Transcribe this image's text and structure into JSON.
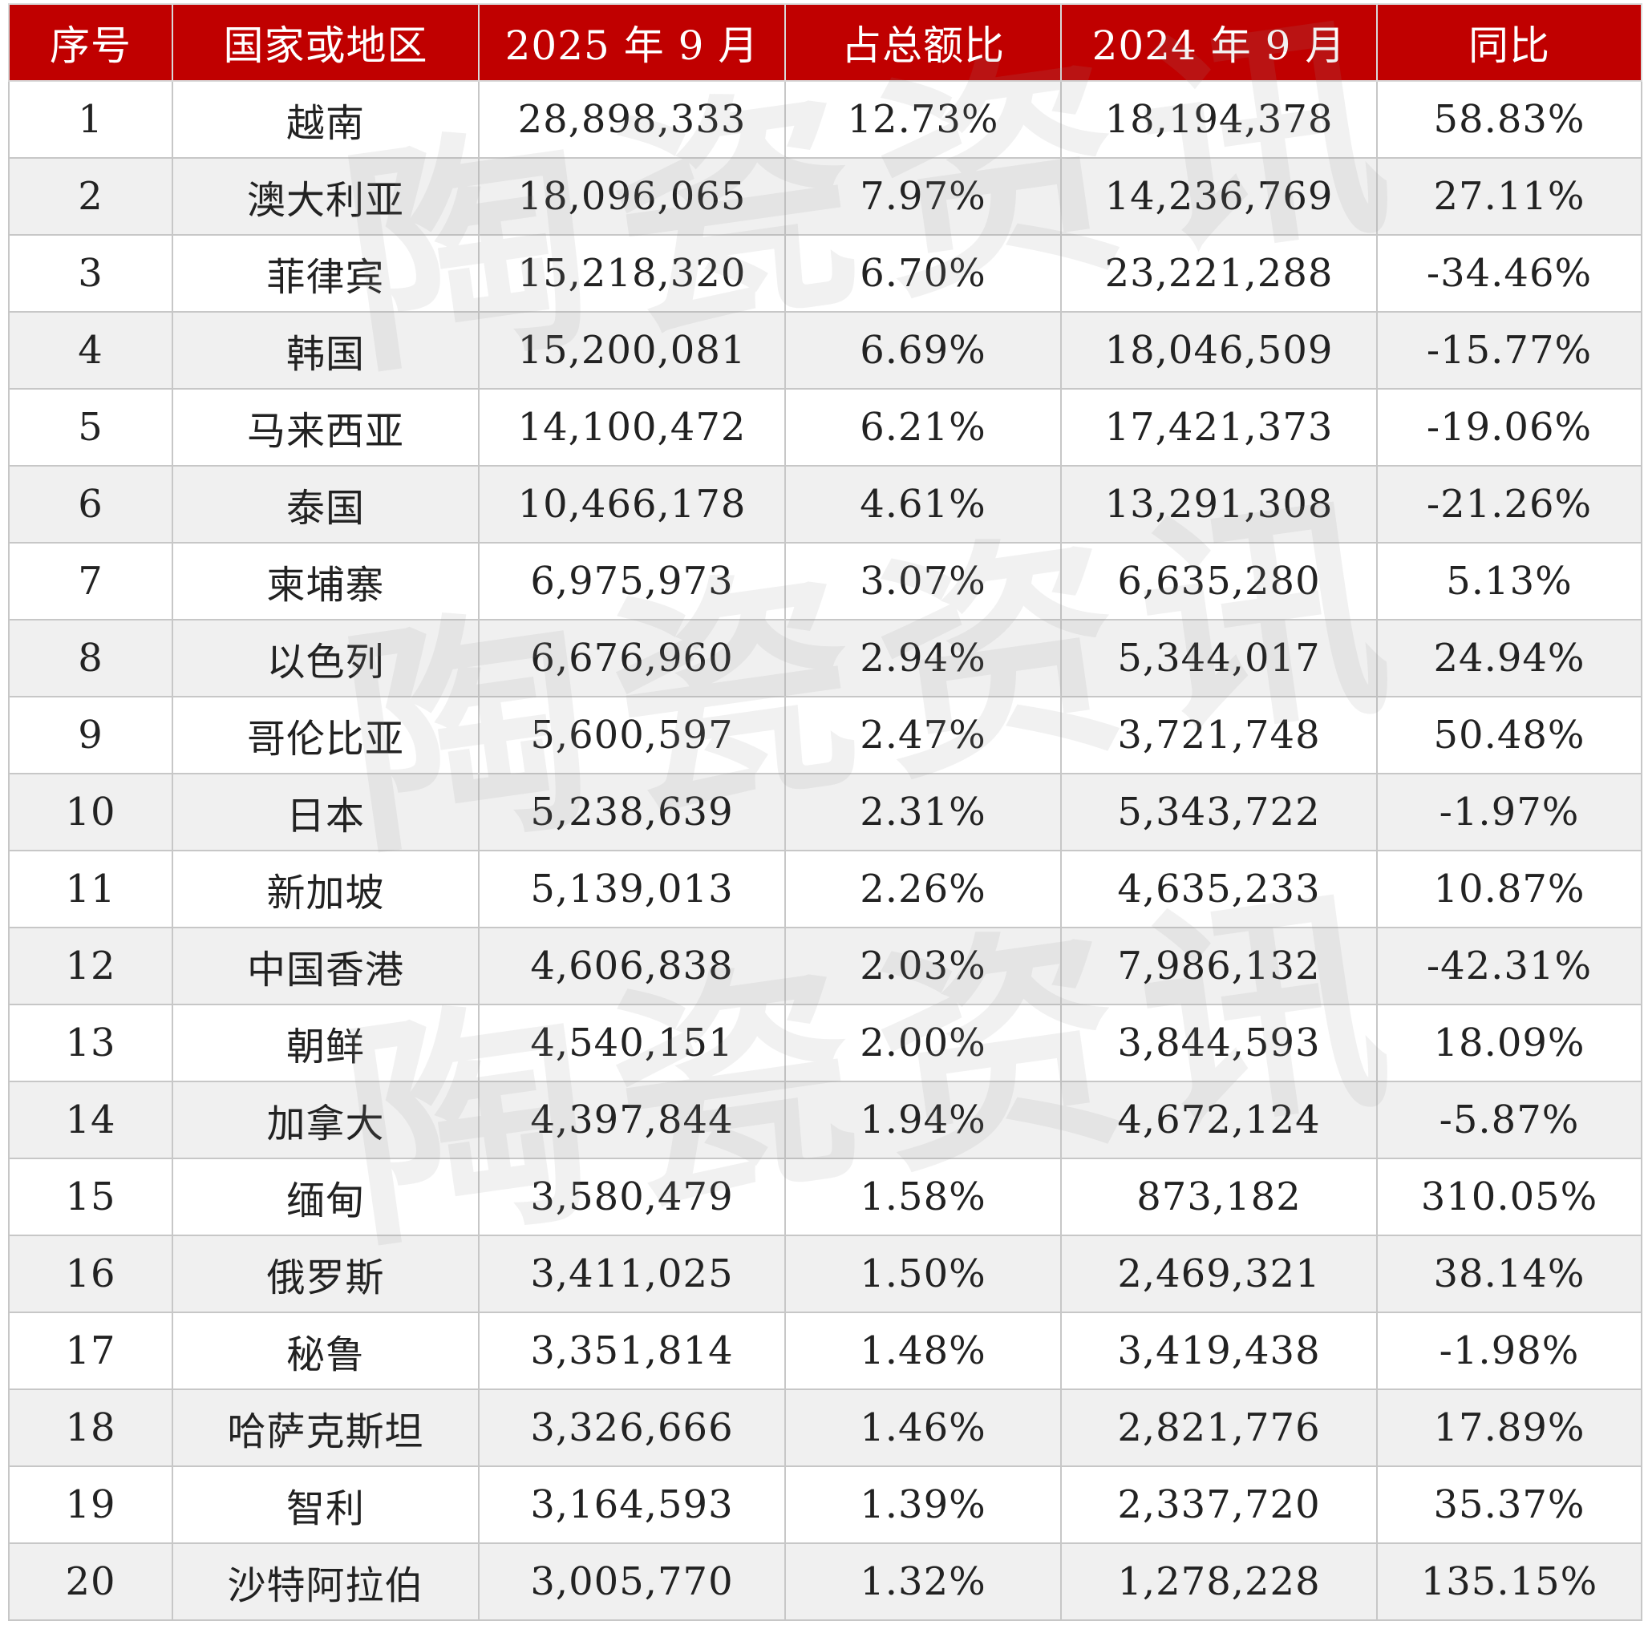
{
  "table": {
    "headers": [
      "序号",
      "国家或地区",
      "2025 年 9 月",
      "占总额比",
      "2024 年 9 月",
      "同比"
    ],
    "rows": [
      [
        "1",
        "越南",
        "28,898,333",
        "12.73%",
        "18,194,378",
        "58.83%"
      ],
      [
        "2",
        "澳大利亚",
        "18,096,065",
        "7.97%",
        "14,236,769",
        "27.11%"
      ],
      [
        "3",
        "菲律宾",
        "15,218,320",
        "6.70%",
        "23,221,288",
        "-34.46%"
      ],
      [
        "4",
        "韩国",
        "15,200,081",
        "6.69%",
        "18,046,509",
        "-15.77%"
      ],
      [
        "5",
        "马来西亚",
        "14,100,472",
        "6.21%",
        "17,421,373",
        "-19.06%"
      ],
      [
        "6",
        "泰国",
        "10,466,178",
        "4.61%",
        "13,291,308",
        "-21.26%"
      ],
      [
        "7",
        "柬埔寨",
        "6,975,973",
        "3.07%",
        "6,635,280",
        "5.13%"
      ],
      [
        "8",
        "以色列",
        "6,676,960",
        "2.94%",
        "5,344,017",
        "24.94%"
      ],
      [
        "9",
        "哥伦比亚",
        "5,600,597",
        "2.47%",
        "3,721,748",
        "50.48%"
      ],
      [
        "10",
        "日本",
        "5,238,639",
        "2.31%",
        "5,343,722",
        "-1.97%"
      ],
      [
        "11",
        "新加坡",
        "5,139,013",
        "2.26%",
        "4,635,233",
        "10.87%"
      ],
      [
        "12",
        "中国香港",
        "4,606,838",
        "2.03%",
        "7,986,132",
        "-42.31%"
      ],
      [
        "13",
        "朝鲜",
        "4,540,151",
        "2.00%",
        "3,844,593",
        "18.09%"
      ],
      [
        "14",
        "加拿大",
        "4,397,844",
        "1.94%",
        "4,672,124",
        "-5.87%"
      ],
      [
        "15",
        "缅甸",
        "3,580,479",
        "1.58%",
        "873,182",
        "310.05%"
      ],
      [
        "16",
        "俄罗斯",
        "3,411,025",
        "1.50%",
        "2,469,321",
        "38.14%"
      ],
      [
        "17",
        "秘鲁",
        "3,351,814",
        "1.48%",
        "3,419,438",
        "-1.98%"
      ],
      [
        "18",
        "哈萨克斯坦",
        "3,326,666",
        "1.46%",
        "2,821,776",
        "17.89%"
      ],
      [
        "19",
        "智利",
        "3,164,593",
        "1.39%",
        "2,337,720",
        "35.37%"
      ],
      [
        "20",
        "沙特阿拉伯",
        "3,005,770",
        "1.32%",
        "1,278,228",
        "135.15%"
      ]
    ]
  },
  "watermark": {
    "text": "陶瓷资讯",
    "characters": [
      "陶",
      "瓷",
      "资",
      "讯"
    ]
  },
  "colors": {
    "header_bg": "#c00000",
    "header_text": "#ffffff",
    "alt_row_bg": "#eaeaea",
    "grid": "#c7c7c7"
  }
}
